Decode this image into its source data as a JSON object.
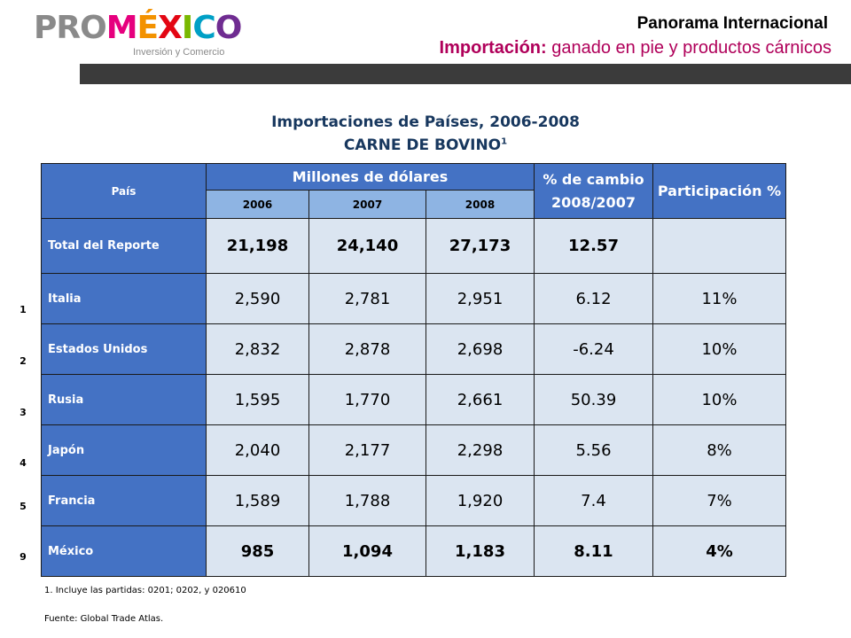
{
  "logo": {
    "pro": "PRO",
    "mexico": "MÉXICO",
    "tagline": "Inversión y Comercio"
  },
  "header": {
    "title": "Panorama Internacional",
    "subtitle_bold": "Importación:",
    "subtitle_rest": " ganado en pie y productos cárnicos"
  },
  "table": {
    "title1": "Importaciones de Países, 2006-2008",
    "title2": "CARNE DE BOVINO",
    "title2_sup": "1",
    "head": {
      "pais": "País",
      "millones": "Millones de dólares",
      "cambio": "% de cambio 2008/2007",
      "participacion": "Participación %",
      "years": [
        "2006",
        "2007",
        "2008"
      ]
    },
    "rows": [
      {
        "pais": "Total del Reporte",
        "y2006": "21,198",
        "y2007": "24,140",
        "y2008": "27,173",
        "cambio": "12.57",
        "part": ""
      },
      {
        "pais": "Italia",
        "y2006": "2,590",
        "y2007": "2,781",
        "y2008": "2,951",
        "cambio": "6.12",
        "part": "11%"
      },
      {
        "pais": "Estados Unidos",
        "y2006": "2,832",
        "y2007": "2,878",
        "y2008": "2,698",
        "cambio": "-6.24",
        "part": "10%"
      },
      {
        "pais": "Rusia",
        "y2006": "1,595",
        "y2007": "1,770",
        "y2008": "2,661",
        "cambio": "50.39",
        "part": "10%"
      },
      {
        "pais": "Japón",
        "y2006": "2,040",
        "y2007": "2,177",
        "y2008": "2,298",
        "cambio": "5.56",
        "part": "8%"
      },
      {
        "pais": "Francia",
        "y2006": "1,589",
        "y2007": "1,788",
        "y2008": "1,920",
        "cambio": "7.4",
        "part": "7%"
      },
      {
        "pais": "México",
        "y2006": "985",
        "y2007": "1,094",
        "y2008": "1,183",
        "cambio": "8.11",
        "part": "4%"
      }
    ],
    "ranks": [
      "1",
      "2",
      "3",
      "4",
      "5",
      "9"
    ]
  },
  "notes": {
    "footnote": "1. Incluye las partidas: 0201;  0202,  y 020610",
    "source": "Fuente: Global Trade Atlas."
  },
  "colors": {
    "header_blue": "#4472c4",
    "year_blue": "#8eb4e3",
    "cell_bg": "#dbe5f1",
    "title_navy": "#17375e",
    "accent_magenta": "#b0005a"
  }
}
